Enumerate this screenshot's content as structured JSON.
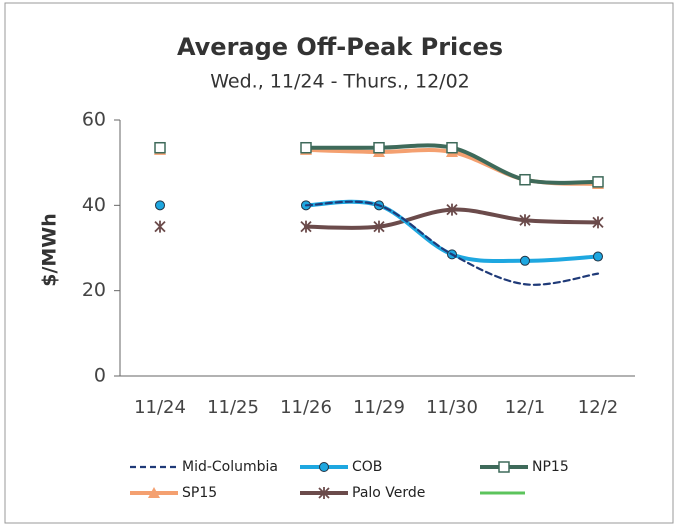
{
  "chart_data": {
    "type": "line",
    "title": "Average Off-Peak Prices",
    "subtitle": "Wed., 11/24 - Thurs., 12/02",
    "y_label": "$/MWh",
    "categories": [
      "11/24",
      "11/25",
      "11/26",
      "11/29",
      "11/30",
      "12/1",
      "12/2"
    ],
    "ylim": [
      0,
      60
    ],
    "yticks": [
      0,
      20,
      40,
      60
    ],
    "series": [
      {
        "name": "Mid-Columbia",
        "color": "#1f3a78",
        "dash": true,
        "marker": "none",
        "values": [
          40,
          null,
          40,
          40,
          28.5,
          21.5,
          24
        ]
      },
      {
        "name": "COB",
        "color": "#1ea7e0",
        "marker": "circle",
        "values": [
          40,
          null,
          40,
          40,
          28.5,
          27,
          28
        ]
      },
      {
        "name": "NP15",
        "color": "#3e6a5a",
        "marker": "square",
        "values": [
          53.5,
          null,
          53.5,
          53.5,
          53.5,
          46,
          45.5
        ]
      },
      {
        "name": "SP15",
        "color": "#f4a070",
        "marker": "triangle",
        "values": [
          53,
          null,
          53,
          52.5,
          52.5,
          46,
          45
        ]
      },
      {
        "name": "Palo Verde",
        "color": "#6b4b4b",
        "marker": "star",
        "values": [
          35,
          null,
          35,
          35,
          39,
          36.5,
          36
        ]
      }
    ]
  }
}
